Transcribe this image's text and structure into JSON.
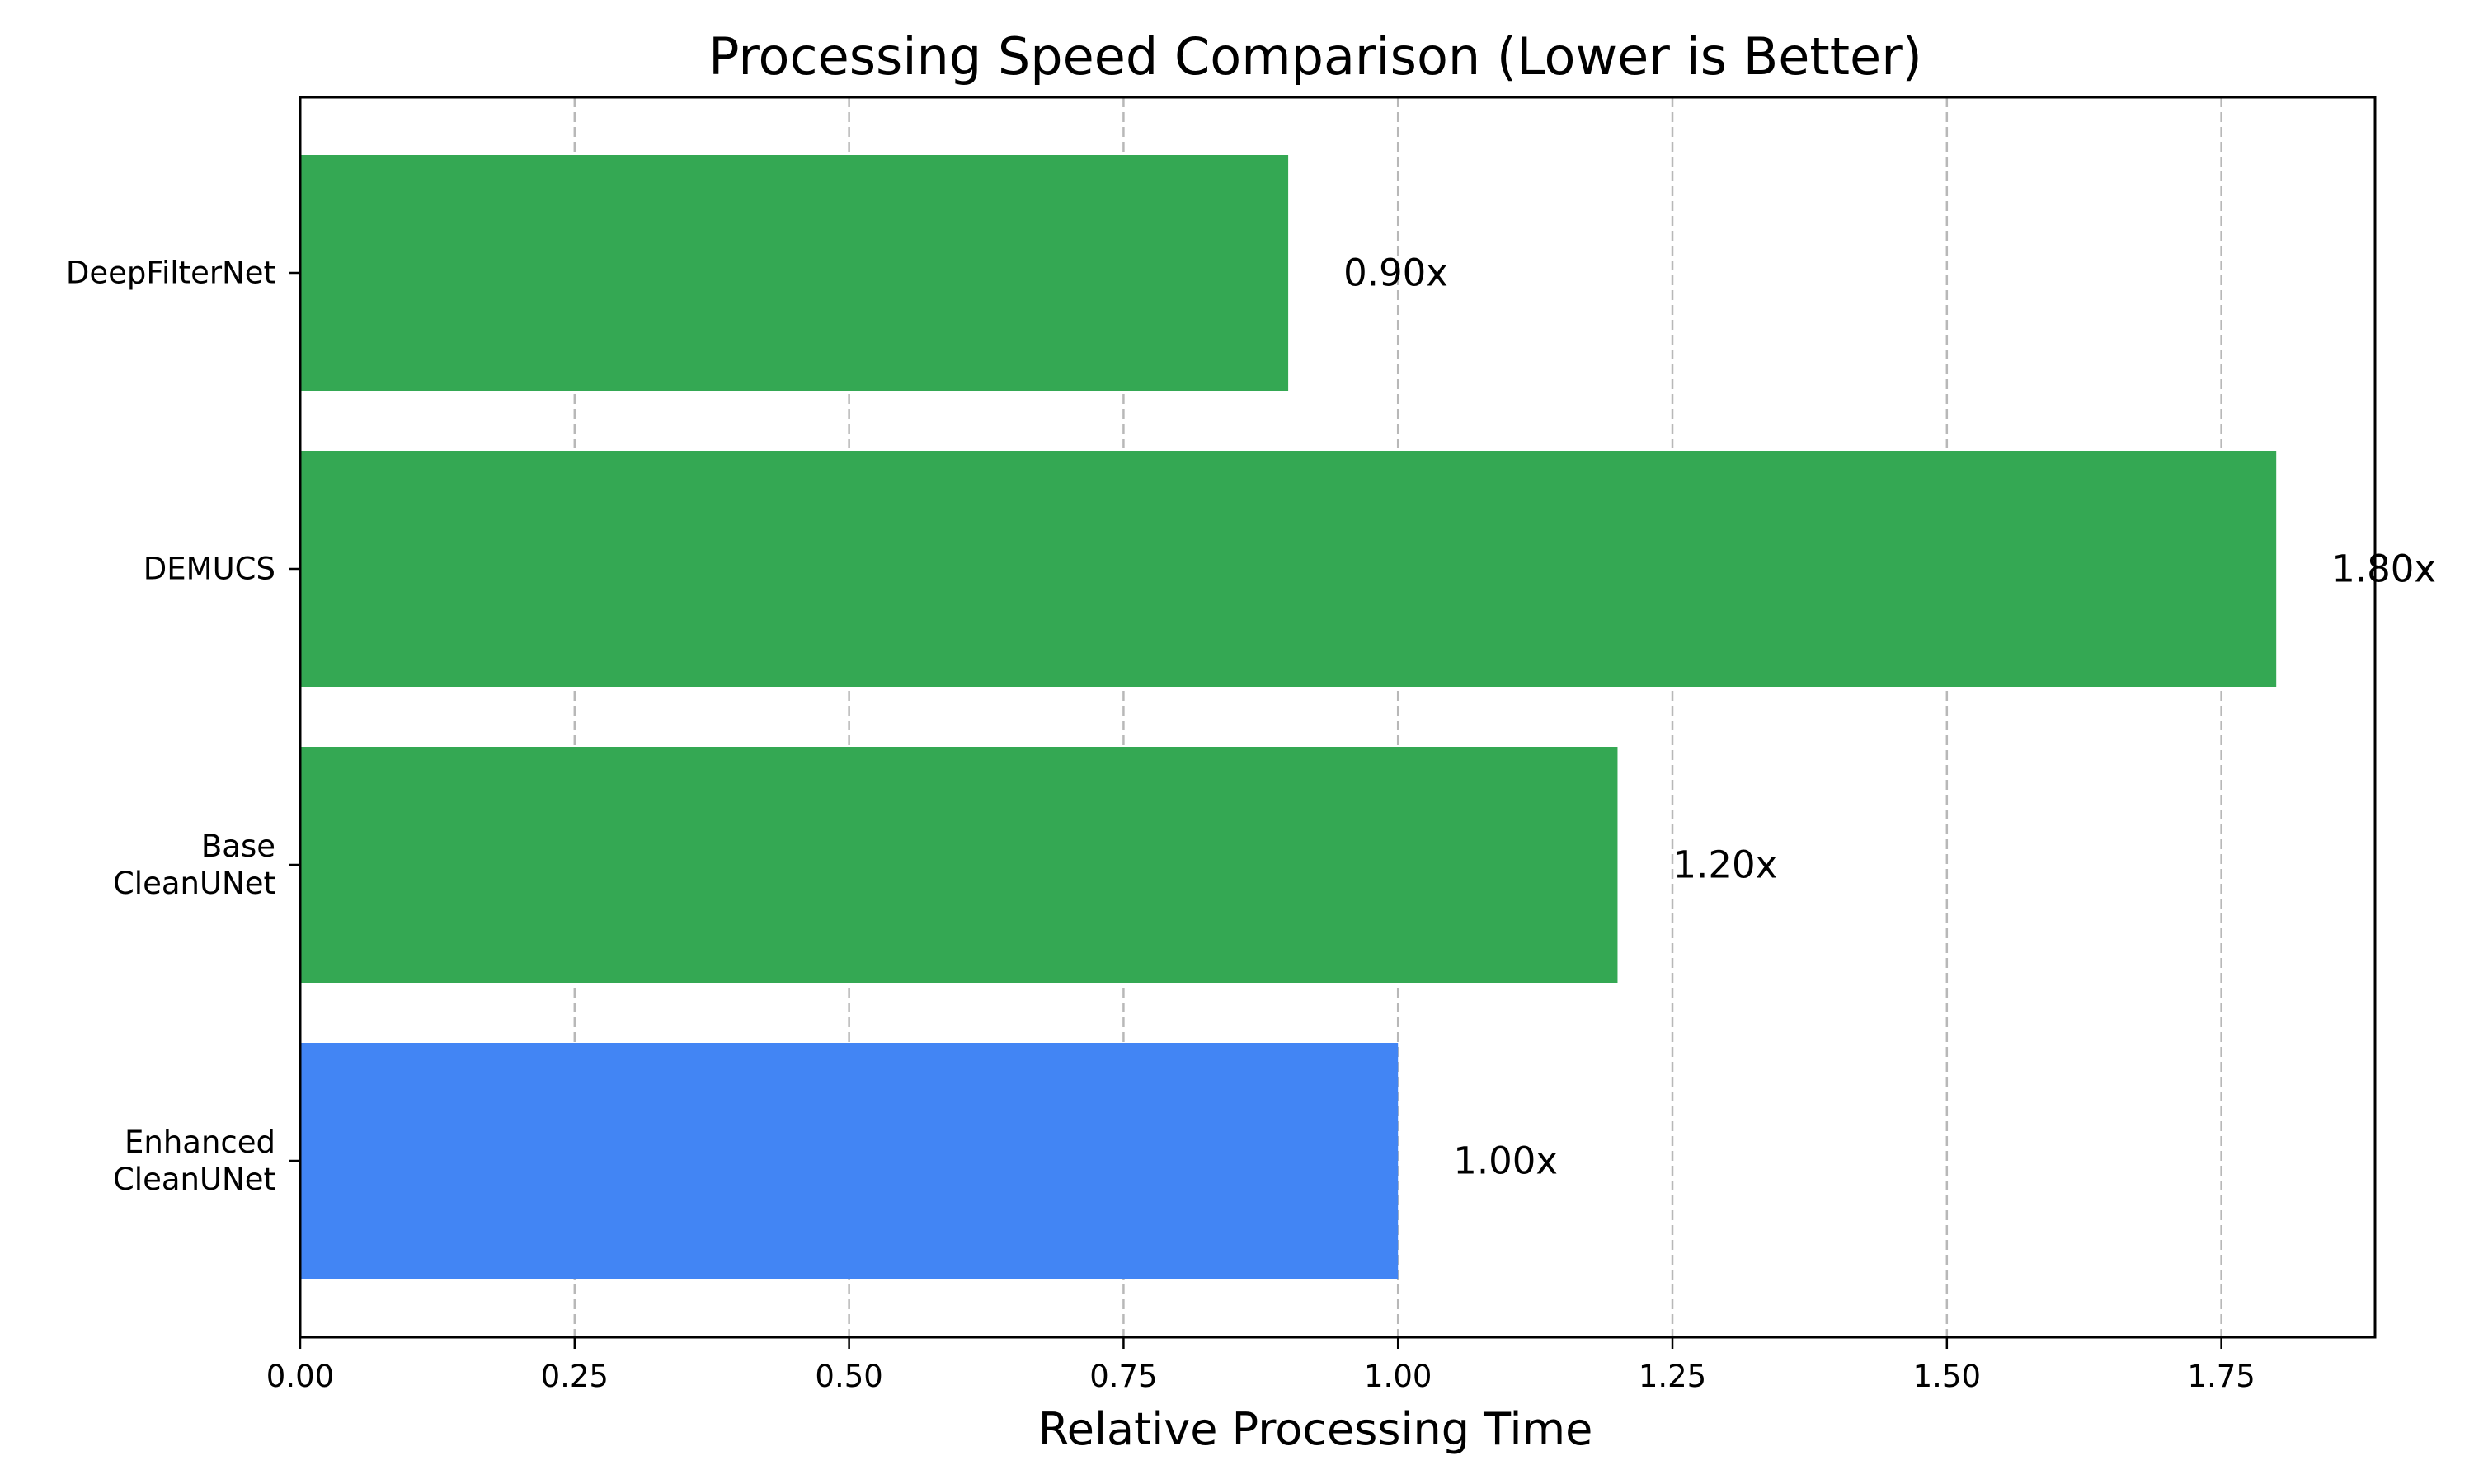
{
  "chart_data": {
    "type": "bar",
    "orientation": "horizontal",
    "title": "Processing Speed Comparison (Lower is Better)",
    "xlabel": "Relative Processing Time",
    "ylabel": "",
    "categories": [
      [
        "DeepFilterNet"
      ],
      [
        "DEMUCS"
      ],
      [
        "Base",
        "CleanUNet"
      ],
      [
        "Enhanced",
        "CleanUNet"
      ]
    ],
    "values": [
      0.9,
      1.8,
      1.2,
      1.0
    ],
    "value_labels": [
      "0.90x",
      "1.80x",
      "1.20x",
      "1.00x"
    ],
    "bar_colors": [
      "#34a853",
      "#34a853",
      "#34a853",
      "#4285f4"
    ],
    "xlim": [
      0,
      1.89
    ],
    "xticks": [
      0.0,
      0.25,
      0.5,
      0.75,
      1.0,
      1.25,
      1.5,
      1.75
    ],
    "xtick_labels": [
      "0.00",
      "0.25",
      "0.50",
      "0.75",
      "1.00",
      "1.25",
      "1.50",
      "1.75"
    ],
    "grid": "x-axis, dashed, light gray",
    "legend": "none"
  }
}
